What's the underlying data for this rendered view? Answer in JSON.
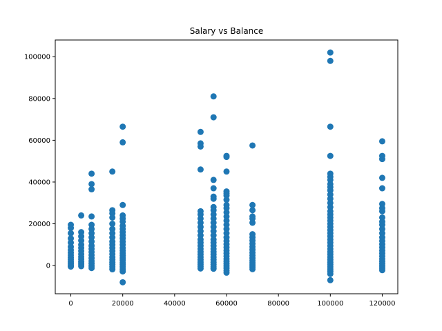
{
  "chart_data": {
    "type": "scatter",
    "title": "Salary vs Balance",
    "xlabel": "",
    "ylabel": "",
    "xlim": [
      -6000,
      126000
    ],
    "ylim": [
      -13500,
      108000
    ],
    "xticks": [
      0,
      20000,
      40000,
      60000,
      80000,
      100000,
      120000
    ],
    "yticks": [
      0,
      20000,
      40000,
      60000,
      80000,
      100000
    ],
    "xtick_labels": [
      "0",
      "20000",
      "40000",
      "60000",
      "80000",
      "100000",
      "120000"
    ],
    "ytick_labels": [
      "0",
      "20000",
      "40000",
      "60000",
      "80000",
      "100000"
    ],
    "grid": false,
    "marker_color": "#1f77b4",
    "series": [
      {
        "points": [
          [
            0,
            19500
          ],
          [
            0,
            18000
          ],
          [
            0,
            15500
          ],
          [
            0,
            13000
          ],
          [
            0,
            11000
          ],
          [
            0,
            9000
          ],
          [
            0,
            7500
          ],
          [
            0,
            6200
          ],
          [
            0,
            5000
          ],
          [
            0,
            3800
          ],
          [
            0,
            2800
          ],
          [
            0,
            1800
          ],
          [
            0,
            900
          ],
          [
            0,
            0
          ],
          [
            0,
            -500
          ],
          [
            4000,
            24000
          ],
          [
            4000,
            16000
          ],
          [
            4000,
            14000
          ],
          [
            4000,
            12000
          ],
          [
            4000,
            10000
          ],
          [
            4000,
            8500
          ],
          [
            4000,
            7000
          ],
          [
            4000,
            5500
          ],
          [
            4000,
            4200
          ],
          [
            4000,
            3000
          ],
          [
            4000,
            1800
          ],
          [
            4000,
            700
          ],
          [
            4000,
            -300
          ],
          [
            8000,
            44000
          ],
          [
            8000,
            39000
          ],
          [
            8000,
            36500
          ],
          [
            8000,
            23500
          ],
          [
            8000,
            19500
          ],
          [
            8000,
            17500
          ],
          [
            8000,
            15500
          ],
          [
            8000,
            13500
          ],
          [
            8000,
            11500
          ],
          [
            8000,
            9500
          ],
          [
            8000,
            8000
          ],
          [
            8000,
            6500
          ],
          [
            8000,
            5000
          ],
          [
            8000,
            3500
          ],
          [
            8000,
            2200
          ],
          [
            8000,
            1000
          ],
          [
            8000,
            -200
          ],
          [
            8000,
            -1200
          ],
          [
            16000,
            45000
          ],
          [
            16000,
            26500
          ],
          [
            16000,
            25000
          ],
          [
            16000,
            23000
          ],
          [
            16000,
            20000
          ],
          [
            16000,
            17500
          ],
          [
            16000,
            15500
          ],
          [
            16000,
            13500
          ],
          [
            16000,
            11500
          ],
          [
            16000,
            10000
          ],
          [
            16000,
            8500
          ],
          [
            16000,
            7000
          ],
          [
            16000,
            5500
          ],
          [
            16000,
            4000
          ],
          [
            16000,
            2800
          ],
          [
            16000,
            1500
          ],
          [
            16000,
            500
          ],
          [
            16000,
            -600
          ],
          [
            16000,
            -1800
          ],
          [
            20000,
            66500
          ],
          [
            20000,
            59000
          ],
          [
            20000,
            29000
          ],
          [
            20000,
            24000
          ],
          [
            20000,
            22500
          ],
          [
            20000,
            21000
          ],
          [
            20000,
            19000
          ],
          [
            20000,
            17500
          ],
          [
            20000,
            16000
          ],
          [
            20000,
            14500
          ],
          [
            20000,
            13000
          ],
          [
            20000,
            11500
          ],
          [
            20000,
            10000
          ],
          [
            20000,
            8500
          ],
          [
            20000,
            7200
          ],
          [
            20000,
            6000
          ],
          [
            20000,
            4800
          ],
          [
            20000,
            3600
          ],
          [
            20000,
            2500
          ],
          [
            20000,
            1400
          ],
          [
            20000,
            400
          ],
          [
            20000,
            -600
          ],
          [
            20000,
            -1700
          ],
          [
            20000,
            -2800
          ],
          [
            20000,
            -8000
          ],
          [
            50000,
            64000
          ],
          [
            50000,
            58500
          ],
          [
            50000,
            57000
          ],
          [
            50000,
            46000
          ],
          [
            50000,
            26000
          ],
          [
            50000,
            24500
          ],
          [
            50000,
            22500
          ],
          [
            50000,
            20500
          ],
          [
            50000,
            18500
          ],
          [
            50000,
            16500
          ],
          [
            50000,
            14500
          ],
          [
            50000,
            12500
          ],
          [
            50000,
            11000
          ],
          [
            50000,
            9500
          ],
          [
            50000,
            8000
          ],
          [
            50000,
            6600
          ],
          [
            50000,
            5300
          ],
          [
            50000,
            4000
          ],
          [
            50000,
            2800
          ],
          [
            50000,
            1700
          ],
          [
            50000,
            600
          ],
          [
            50000,
            -400
          ],
          [
            50000,
            -1400
          ],
          [
            55000,
            81000
          ],
          [
            55000,
            71000
          ],
          [
            55000,
            41000
          ],
          [
            55000,
            37000
          ],
          [
            55000,
            33000
          ],
          [
            55000,
            32000
          ],
          [
            55000,
            28000
          ],
          [
            55000,
            26500
          ],
          [
            55000,
            24500
          ],
          [
            55000,
            22500
          ],
          [
            55000,
            20500
          ],
          [
            55000,
            18500
          ],
          [
            55000,
            16500
          ],
          [
            55000,
            14500
          ],
          [
            55000,
            12500
          ],
          [
            55000,
            11000
          ],
          [
            55000,
            9500
          ],
          [
            55000,
            8000
          ],
          [
            55000,
            6600
          ],
          [
            55000,
            5300
          ],
          [
            55000,
            4000
          ],
          [
            55000,
            2800
          ],
          [
            55000,
            1600
          ],
          [
            55000,
            500
          ],
          [
            55000,
            -600
          ],
          [
            55000,
            -1500
          ],
          [
            60000,
            52500
          ],
          [
            60000,
            52000
          ],
          [
            60000,
            45000
          ],
          [
            60000,
            35500
          ],
          [
            60000,
            34500
          ],
          [
            60000,
            33500
          ],
          [
            60000,
            31500
          ],
          [
            60000,
            29000
          ],
          [
            60000,
            27500
          ],
          [
            60000,
            25500
          ],
          [
            60000,
            23500
          ],
          [
            60000,
            21500
          ],
          [
            60000,
            19500
          ],
          [
            60000,
            17500
          ],
          [
            60000,
            15500
          ],
          [
            60000,
            13500
          ],
          [
            60000,
            11800
          ],
          [
            60000,
            10200
          ],
          [
            60000,
            8700
          ],
          [
            60000,
            7200
          ],
          [
            60000,
            5800
          ],
          [
            60000,
            4500
          ],
          [
            60000,
            3200
          ],
          [
            60000,
            2000
          ],
          [
            60000,
            900
          ],
          [
            60000,
            -200
          ],
          [
            60000,
            -1300
          ],
          [
            60000,
            -2400
          ],
          [
            60000,
            -3400
          ],
          [
            70000,
            57500
          ],
          [
            70000,
            29000
          ],
          [
            70000,
            26500
          ],
          [
            70000,
            23500
          ],
          [
            70000,
            22500
          ],
          [
            70000,
            20500
          ],
          [
            70000,
            15000
          ],
          [
            70000,
            13500
          ],
          [
            70000,
            12000
          ],
          [
            70000,
            10500
          ],
          [
            70000,
            9000
          ],
          [
            70000,
            7600
          ],
          [
            70000,
            6200
          ],
          [
            70000,
            4900
          ],
          [
            70000,
            3600
          ],
          [
            70000,
            2400
          ],
          [
            70000,
            1300
          ],
          [
            70000,
            300
          ],
          [
            70000,
            -700
          ],
          [
            70000,
            -1700
          ],
          [
            100000,
            102000
          ],
          [
            100000,
            98000
          ],
          [
            100000,
            66500
          ],
          [
            100000,
            52500
          ],
          [
            100000,
            44000
          ],
          [
            100000,
            42500
          ],
          [
            100000,
            41000
          ],
          [
            100000,
            39000
          ],
          [
            100000,
            37500
          ],
          [
            100000,
            36000
          ],
          [
            100000,
            34000
          ],
          [
            100000,
            32000
          ],
          [
            100000,
            30000
          ],
          [
            100000,
            28000
          ],
          [
            100000,
            26000
          ],
          [
            100000,
            24500
          ],
          [
            100000,
            23000
          ],
          [
            100000,
            21500
          ],
          [
            100000,
            20000
          ],
          [
            100000,
            18500
          ],
          [
            100000,
            17000
          ],
          [
            100000,
            15500
          ],
          [
            100000,
            14000
          ],
          [
            100000,
            12500
          ],
          [
            100000,
            11000
          ],
          [
            100000,
            9500
          ],
          [
            100000,
            8000
          ],
          [
            100000,
            6600
          ],
          [
            100000,
            5300
          ],
          [
            100000,
            4000
          ],
          [
            100000,
            2800
          ],
          [
            100000,
            1600
          ],
          [
            100000,
            500
          ],
          [
            100000,
            -600
          ],
          [
            100000,
            -1700
          ],
          [
            100000,
            -2800
          ],
          [
            100000,
            -4000
          ],
          [
            100000,
            -7000
          ],
          [
            120000,
            59500
          ],
          [
            120000,
            52500
          ],
          [
            120000,
            51000
          ],
          [
            120000,
            42000
          ],
          [
            120000,
            37000
          ],
          [
            120000,
            29500
          ],
          [
            120000,
            27500
          ],
          [
            120000,
            26000
          ],
          [
            120000,
            23000
          ],
          [
            120000,
            21000
          ],
          [
            120000,
            19500
          ],
          [
            120000,
            17500
          ],
          [
            120000,
            15500
          ],
          [
            120000,
            13500
          ],
          [
            120000,
            11800
          ],
          [
            120000,
            10200
          ],
          [
            120000,
            8700
          ],
          [
            120000,
            7200
          ],
          [
            120000,
            5800
          ],
          [
            120000,
            4500
          ],
          [
            120000,
            3200
          ],
          [
            120000,
            2000
          ],
          [
            120000,
            900
          ],
          [
            120000,
            -200
          ],
          [
            120000,
            -1200
          ],
          [
            120000,
            -2200
          ]
        ]
      }
    ]
  }
}
